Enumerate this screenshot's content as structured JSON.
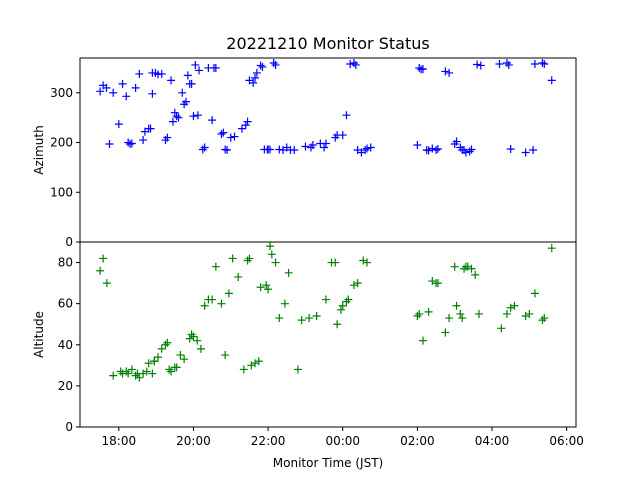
{
  "chart_data": {
    "type": "scatter",
    "title": "20221210 Monitor Status",
    "xlabel": "Monitor Time (JST)",
    "x_unit": "hours (JST, continuing past midnight)",
    "xlim": [
      16.96,
      30.25
    ],
    "x_ticks": [
      {
        "value": 18,
        "label": "18:00"
      },
      {
        "value": 20,
        "label": "20:00"
      },
      {
        "value": 22,
        "label": "22:00"
      },
      {
        "value": 24,
        "label": "00:00"
      },
      {
        "value": 26,
        "label": "02:00"
      },
      {
        "value": 28,
        "label": "04:00"
      },
      {
        "value": 30,
        "label": "06:00"
      }
    ],
    "marker": "+",
    "grid": false,
    "legend": "none",
    "panels": [
      {
        "ylabel": "Azimuth",
        "ylim": [
          0,
          370
        ],
        "y_ticks": [
          0,
          100,
          200,
          300
        ],
        "color": "#0000ff",
        "x": [
          17.5,
          17.58,
          17.67,
          17.75,
          17.85,
          18.0,
          18.1,
          18.2,
          18.25,
          18.3,
          18.35,
          18.45,
          18.55,
          18.65,
          18.7,
          18.8,
          18.85,
          18.9,
          18.9,
          18.98,
          19.05,
          19.15,
          19.25,
          19.3,
          19.4,
          19.45,
          19.5,
          19.55,
          19.6,
          19.7,
          19.75,
          19.8,
          19.85,
          19.9,
          19.95,
          20.0,
          20.05,
          20.12,
          20.15,
          20.25,
          20.3,
          20.4,
          20.5,
          20.55,
          20.6,
          20.75,
          20.8,
          20.85,
          20.9,
          21.0,
          21.1,
          21.3,
          21.4,
          21.45,
          21.5,
          21.6,
          21.65,
          21.7,
          21.8,
          21.85,
          21.9,
          21.98,
          22.0,
          22.05,
          22.15,
          22.2,
          22.3,
          22.4,
          22.5,
          22.6,
          22.7,
          23.0,
          23.15,
          23.2,
          23.4,
          23.5,
          23.55,
          23.8,
          23.85,
          24.0,
          24.1,
          24.2,
          24.3,
          24.35,
          24.4,
          24.5,
          24.6,
          24.65,
          24.75,
          26.0,
          26.05,
          26.1,
          26.15,
          26.25,
          26.3,
          26.4,
          26.5,
          26.55,
          26.75,
          26.85,
          27.0,
          27.05,
          27.15,
          27.2,
          27.25,
          27.3,
          27.4,
          27.45,
          27.6,
          27.7,
          28.2,
          28.4,
          28.45,
          28.5,
          28.9,
          29.1,
          29.15,
          29.35,
          29.4,
          29.6
        ],
        "y": [
          303,
          315,
          310,
          197,
          300,
          237,
          318,
          293,
          200,
          197,
          198,
          310,
          338,
          205,
          222,
          228,
          228,
          298,
          340,
          340,
          337,
          338,
          205,
          210,
          325,
          242,
          260,
          253,
          250,
          300,
          277,
          282,
          335,
          318,
          318,
          253,
          356,
          255,
          345,
          186,
          190,
          350,
          245,
          350,
          350,
          217,
          220,
          186,
          185,
          210,
          212,
          228,
          235,
          242,
          325,
          320,
          330,
          340,
          355,
          352,
          186,
          186,
          186,
          186,
          360,
          356,
          186,
          185,
          190,
          185,
          185,
          192,
          190,
          195,
          198,
          190,
          198,
          210,
          215,
          215,
          255,
          358,
          360,
          356,
          185,
          180,
          185,
          188,
          190,
          195,
          350,
          347,
          348,
          185,
          184,
          188,
          185,
          187,
          343,
          340,
          197,
          202,
          190,
          185,
          185,
          180,
          182,
          186,
          357,
          355,
          358,
          360,
          356,
          187,
          180,
          185,
          358,
          360,
          358,
          325
        ]
      },
      {
        "ylabel": "Altitude",
        "ylim": [
          0,
          90
        ],
        "y_ticks": [
          0,
          20,
          40,
          60,
          80
        ],
        "color": "#008000",
        "x": [
          17.5,
          17.58,
          17.68,
          17.85,
          18.05,
          18.1,
          18.2,
          18.25,
          18.35,
          18.45,
          18.5,
          18.55,
          18.65,
          18.75,
          18.8,
          18.9,
          18.95,
          18.95,
          19.05,
          19.15,
          19.25,
          19.3,
          19.35,
          19.4,
          19.5,
          19.55,
          19.65,
          19.75,
          19.9,
          19.95,
          20.0,
          20.1,
          20.2,
          20.3,
          20.4,
          20.5,
          20.6,
          20.75,
          20.85,
          20.95,
          21.05,
          21.2,
          21.35,
          21.45,
          21.5,
          21.55,
          21.65,
          21.75,
          21.8,
          21.95,
          22.0,
          22.05,
          22.1,
          22.2,
          22.3,
          22.45,
          22.55,
          22.8,
          22.9,
          23.1,
          23.3,
          23.55,
          23.7,
          23.8,
          23.85,
          23.95,
          24.0,
          24.1,
          24.15,
          24.3,
          24.4,
          24.55,
          24.65,
          26.0,
          26.05,
          26.15,
          26.3,
          26.4,
          26.5,
          26.55,
          26.75,
          26.85,
          27.0,
          27.05,
          27.15,
          27.2,
          27.25,
          27.3,
          27.35,
          27.45,
          27.55,
          27.65,
          28.25,
          28.4,
          28.5,
          28.6,
          28.9,
          29.0,
          29.15,
          29.35,
          29.4,
          29.6
        ],
        "y": [
          76,
          82,
          70,
          25,
          27,
          26,
          27,
          26,
          28,
          25,
          26,
          24,
          26,
          27,
          31,
          26,
          32,
          32,
          34,
          38,
          40,
          41,
          28,
          27,
          29,
          29,
          35,
          33,
          43,
          45,
          44,
          42,
          38,
          59,
          62,
          62,
          78,
          60,
          35,
          65,
          82,
          73,
          28,
          81,
          82,
          30,
          31,
          32,
          68,
          69,
          67,
          88,
          84,
          80,
          53,
          60,
          75,
          28,
          52,
          53,
          54,
          62,
          80,
          80,
          50,
          57,
          59,
          61,
          62,
          69,
          70,
          81,
          80,
          54,
          55,
          42,
          56,
          71,
          70,
          70,
          46,
          53,
          78,
          59,
          55,
          53,
          77,
          78,
          78,
          77,
          74,
          55,
          48,
          55,
          58,
          59,
          54,
          55,
          65,
          52,
          53,
          87
        ]
      }
    ]
  }
}
